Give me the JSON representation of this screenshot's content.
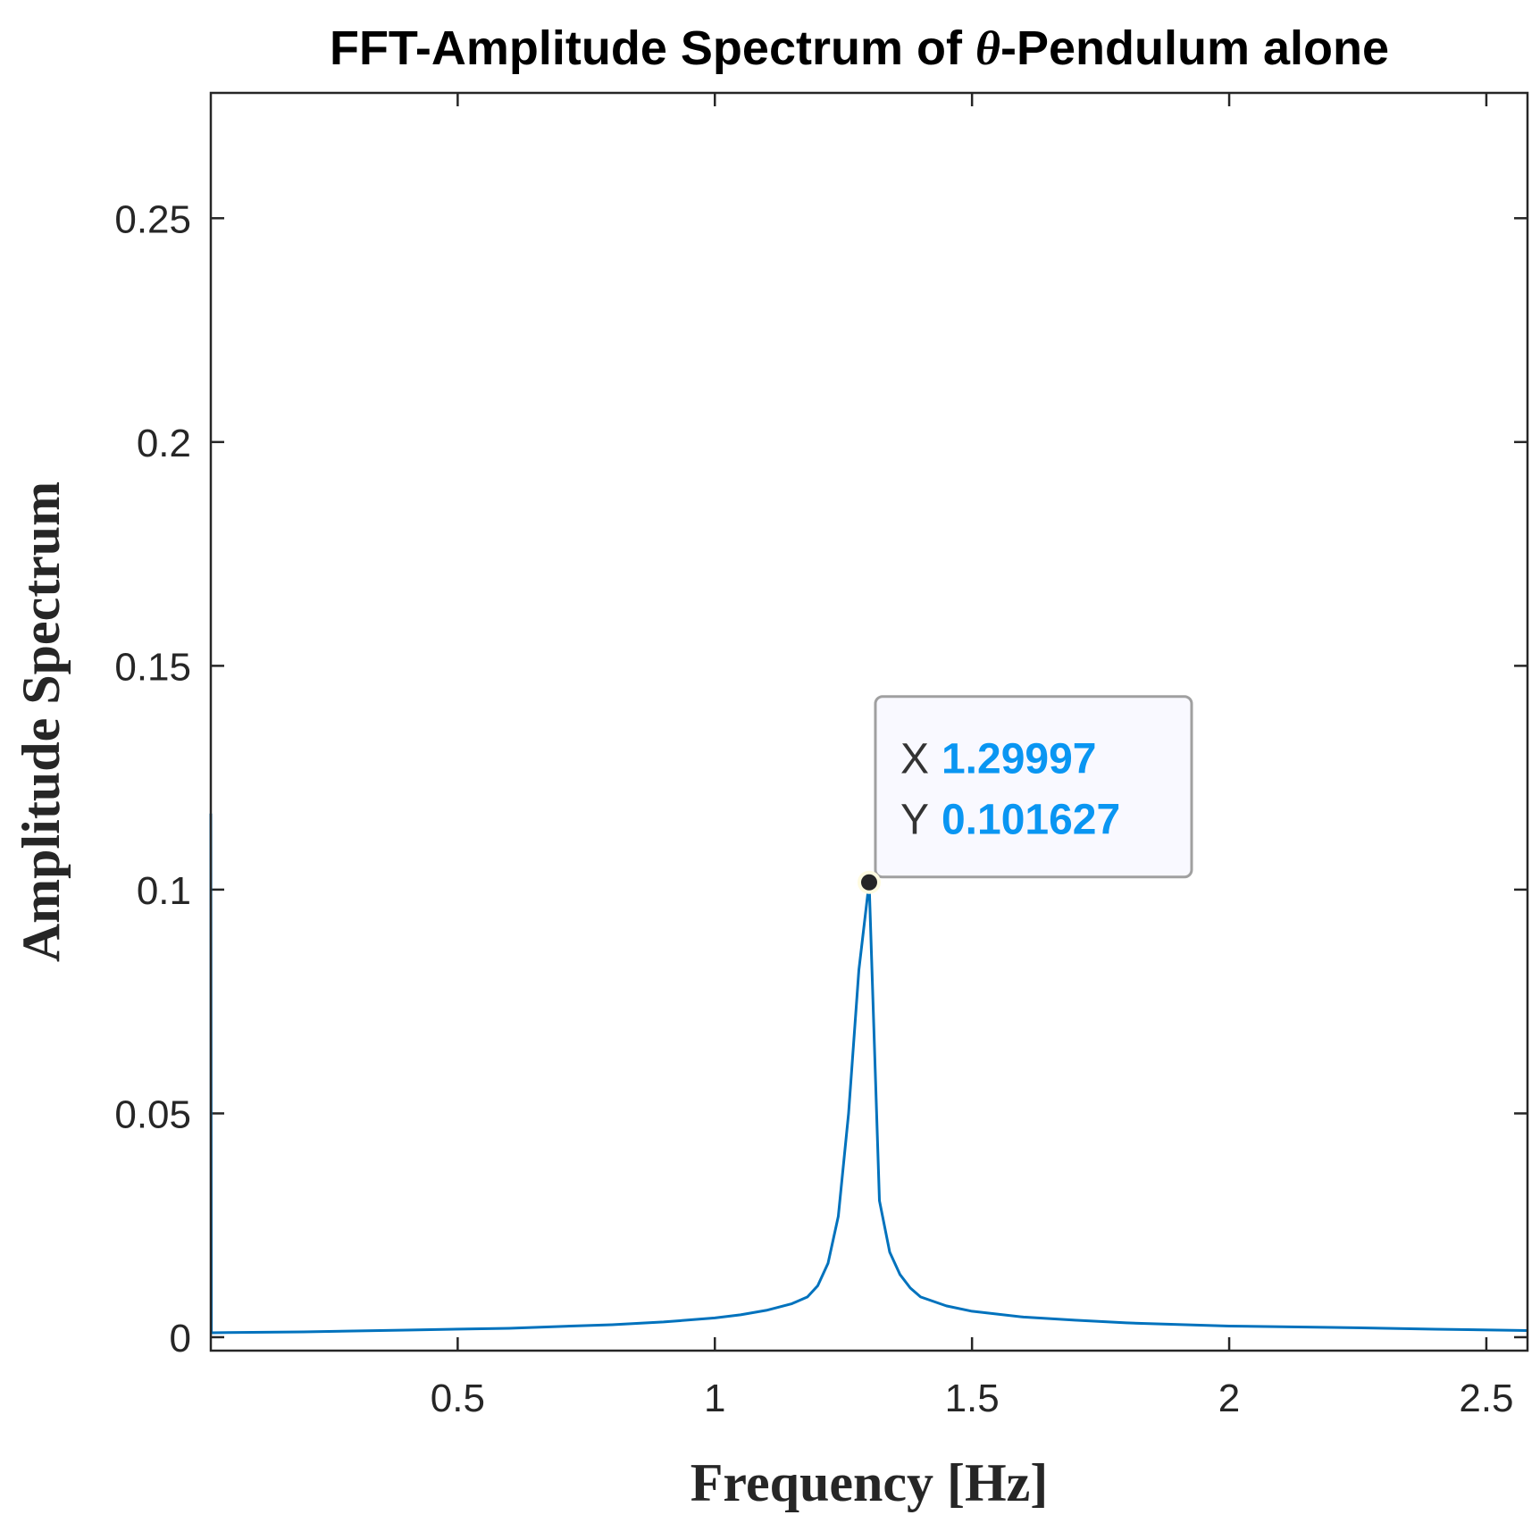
{
  "chart_data": {
    "type": "line",
    "title_prefix": "FFT-Amplitude Spectrum of ",
    "title_symbol": "θ",
    "title_suffix": "-Pendulum alone",
    "xlabel": "Frequency [Hz]",
    "ylabel": "Amplitude Spectrum",
    "xlim": [
      0.02,
      2.58
    ],
    "ylim": [
      -0.003,
      0.278
    ],
    "xticks": [
      0.5,
      1,
      1.5,
      2,
      2.5
    ],
    "xtick_labels": [
      "0.5",
      "1",
      "1.5",
      "2",
      "2.5"
    ],
    "yticks": [
      0,
      0.05,
      0.1,
      0.15,
      0.2,
      0.25
    ],
    "ytick_labels": [
      "0",
      "0.05",
      "0.1",
      "0.15",
      "0.2",
      "0.25"
    ],
    "grid": false,
    "line_color": "#0072bd",
    "series": [
      {
        "x": [
          0.02,
          0.021,
          0.2,
          0.4,
          0.6,
          0.8,
          0.9,
          1.0,
          1.05,
          1.1,
          1.15,
          1.18,
          1.2,
          1.22,
          1.24,
          1.26,
          1.28,
          1.29997,
          1.32,
          1.34,
          1.36,
          1.38,
          1.4,
          1.45,
          1.5,
          1.6,
          1.7,
          1.8,
          2.0,
          2.2,
          2.4,
          2.58
        ],
        "y": [
          0.117,
          0.001,
          0.0012,
          0.0016,
          0.002,
          0.0028,
          0.0034,
          0.0043,
          0.005,
          0.006,
          0.0075,
          0.009,
          0.0115,
          0.0165,
          0.027,
          0.05,
          0.082,
          0.101627,
          0.0305,
          0.019,
          0.014,
          0.011,
          0.009,
          0.007,
          0.0058,
          0.0045,
          0.0038,
          0.0032,
          0.0025,
          0.0022,
          0.0018,
          0.0015
        ]
      }
    ],
    "datatip": {
      "x": 1.29997,
      "y": 0.101627,
      "x_key": "X",
      "x_value": "1.29997",
      "y_key": "Y",
      "y_value": "0.101627"
    }
  }
}
